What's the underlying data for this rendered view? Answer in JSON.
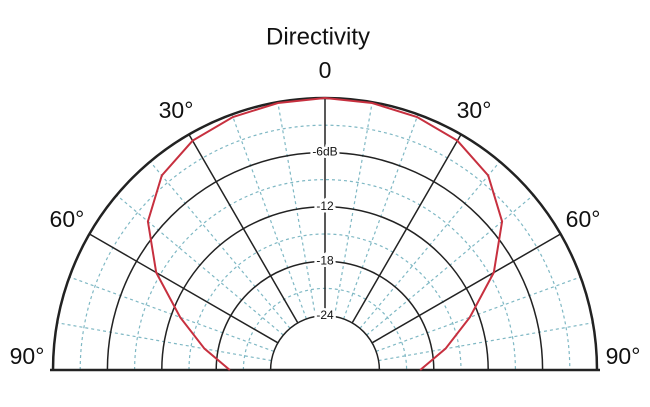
{
  "chart_data": {
    "type": "polar",
    "title": "Directivity",
    "rlim": [
      -30,
      0
    ],
    "rticks": [
      {
        "value": -6,
        "label": "-6dB"
      },
      -12,
      -18,
      -24
    ],
    "thetalim": [
      -90,
      90
    ],
    "thetaticks": [
      {
        "value": -90,
        "label": "90°"
      },
      {
        "value": -60,
        "label": "60°"
      },
      {
        "value": -30,
        "label": "30°"
      },
      0,
      {
        "value": 30,
        "label": "30°"
      },
      {
        "value": 60,
        "label": "60°"
      },
      {
        "value": 90,
        "label": "90°"
      }
    ],
    "grid": true,
    "series": [
      {
        "color": "#c7303f",
        "theta": [
          -90,
          -80,
          -70,
          -60,
          -50,
          -40,
          -30,
          -20,
          -10,
          0,
          10,
          20,
          30,
          40,
          50,
          60,
          70,
          80,
          90
        ],
        "values": [
          -19.5,
          -16.5,
          -13,
          -8.5,
          -4.5,
          -2,
          -0.8,
          -0.3,
          -0.1,
          0,
          -0.1,
          -0.3,
          -0.8,
          -2,
          -4.5,
          -8.5,
          -13,
          -16.5,
          -19.5
        ]
      }
    ]
  }
}
